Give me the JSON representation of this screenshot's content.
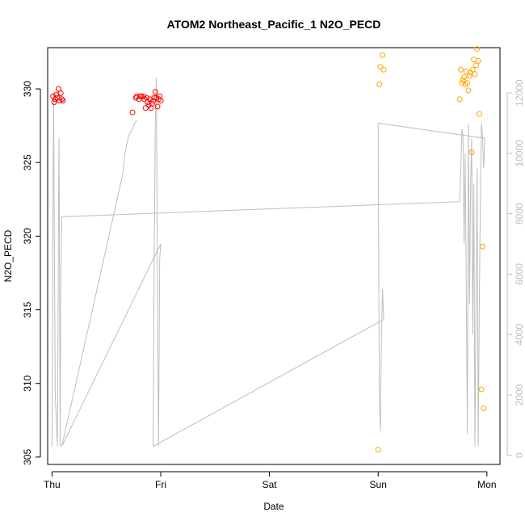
{
  "chart_data": {
    "type": "scatter",
    "title": "ATOM2 Northeast_Pacific_1 N2O_PECD",
    "xlabel": "Date",
    "ylabel": "N2O_PECD",
    "x_ticks": [
      "Thu",
      "Fri",
      "Sat",
      "Sun",
      "Mon"
    ],
    "x_units": "days from Thu 00:00",
    "xlim": [
      -0.04,
      4.12
    ],
    "ylim": [
      304.5,
      332.8
    ],
    "y_ticks": [
      305,
      310,
      315,
      320,
      325,
      330
    ],
    "y2lim": [
      -300,
      13500
    ],
    "y2_ticks": [
      0,
      2000,
      4000,
      6000,
      8000,
      10000,
      12000
    ],
    "colors": {
      "red": "#ff0000",
      "orange": "#ffa500",
      "altitude": "#bebebe"
    },
    "series": [
      {
        "color": "red",
        "points": [
          [
            0.01,
            329.5
          ],
          [
            0.02,
            329.1
          ],
          [
            0.03,
            329.3
          ],
          [
            0.04,
            329.6
          ],
          [
            0.05,
            329.4
          ],
          [
            0.06,
            330.0
          ],
          [
            0.07,
            329.2
          ],
          [
            0.08,
            329.7
          ],
          [
            0.09,
            329.3
          ],
          [
            0.1,
            329.2
          ],
          [
            0.74,
            328.4
          ],
          [
            0.77,
            329.4
          ],
          [
            0.78,
            329.5
          ],
          [
            0.8,
            329.3
          ],
          [
            0.81,
            329.5
          ],
          [
            0.82,
            329.5
          ],
          [
            0.84,
            329.5
          ],
          [
            0.85,
            329.3
          ],
          [
            0.86,
            328.7
          ],
          [
            0.87,
            329.4
          ],
          [
            0.88,
            329.1
          ],
          [
            0.89,
            328.9
          ],
          [
            0.9,
            329.3
          ],
          [
            0.91,
            328.7
          ],
          [
            0.92,
            329.0
          ],
          [
            0.93,
            329.2
          ],
          [
            0.94,
            329.4
          ],
          [
            0.95,
            329.8
          ],
          [
            0.96,
            329.4
          ],
          [
            0.97,
            328.8
          ],
          [
            0.98,
            329.3
          ],
          [
            0.99,
            329.5
          ],
          [
            1.0,
            329.2
          ]
        ]
      },
      {
        "color": "orange",
        "points": [
          [
            3.0,
            305.5
          ],
          [
            3.01,
            330.3
          ],
          [
            3.02,
            331.5
          ],
          [
            3.04,
            332.3
          ],
          [
            3.05,
            331.3
          ],
          [
            3.75,
            329.3
          ],
          [
            3.76,
            331.3
          ],
          [
            3.77,
            330.4
          ],
          [
            3.78,
            330.6
          ],
          [
            3.79,
            330.8
          ],
          [
            3.8,
            330.3
          ],
          [
            3.81,
            331.2
          ],
          [
            3.82,
            330.4
          ],
          [
            3.83,
            329.9
          ],
          [
            3.84,
            330.9
          ],
          [
            3.85,
            331.1
          ],
          [
            3.86,
            325.7
          ],
          [
            3.87,
            331.3
          ],
          [
            3.88,
            332.0
          ],
          [
            3.89,
            331.0
          ],
          [
            3.9,
            331.6
          ],
          [
            3.91,
            332.7
          ],
          [
            3.92,
            331.9
          ],
          [
            3.93,
            328.3
          ],
          [
            3.95,
            309.6
          ],
          [
            3.96,
            319.3
          ],
          [
            3.97,
            308.3
          ]
        ]
      }
    ],
    "altitude_line": {
      "color": "altitude",
      "points": [
        [
          0.0,
          300
        ],
        [
          0.005,
          4000
        ],
        [
          0.01,
          9000
        ],
        [
          0.015,
          12000
        ],
        [
          0.02,
          8000
        ],
        [
          0.03,
          2000
        ],
        [
          0.05,
          300
        ],
        [
          0.055,
          4000
        ],
        [
          0.06,
          8500
        ],
        [
          0.065,
          10500
        ],
        [
          0.07,
          5000
        ],
        [
          0.075,
          300
        ],
        [
          0.08,
          5500
        ],
        [
          0.09,
          7900
        ],
        [
          3.75,
          8400
        ],
        [
          3.76,
          9500
        ],
        [
          3.77,
          10800
        ],
        [
          3.78,
          10600
        ],
        [
          3.79,
          7000
        ],
        [
          3.8,
          10000
        ],
        [
          3.81,
          5500
        ],
        [
          3.82,
          700
        ],
        [
          3.83,
          11000
        ],
        [
          3.84,
          5000
        ],
        [
          3.85,
          9000
        ],
        [
          3.86,
          10500
        ],
        [
          3.87,
          4000
        ],
        [
          3.88,
          9000
        ],
        [
          3.89,
          300
        ],
        [
          3.9,
          5000
        ],
        [
          3.91,
          9500
        ],
        [
          3.92,
          300
        ],
        [
          3.93,
          5000
        ],
        [
          3.94,
          8500
        ],
        [
          3.95,
          11000
        ],
        [
          3.96,
          10500
        ],
        [
          3.97,
          9500
        ],
        [
          3.98,
          10500
        ],
        [
          3.0,
          11000
        ],
        [
          3.01,
          2000
        ],
        [
          3.02,
          800
        ],
        [
          3.03,
          4000
        ],
        [
          3.04,
          5500
        ],
        [
          3.05,
          4500
        ],
        [
          0.93,
          300
        ],
        [
          0.94,
          6500
        ],
        [
          0.95,
          11000
        ],
        [
          0.96,
          12500
        ],
        [
          0.97,
          5000
        ],
        [
          0.98,
          300
        ],
        [
          0.99,
          6500
        ],
        [
          1.0,
          7000
        ],
        [
          0.09,
          300
        ],
        [
          0.65,
          9300
        ],
        [
          0.67,
          10000
        ],
        [
          0.7,
          10500
        ],
        [
          0.72,
          10700
        ],
        [
          0.74,
          10800
        ],
        [
          0.76,
          11000
        ],
        [
          0.78,
          11100
        ]
      ]
    }
  }
}
